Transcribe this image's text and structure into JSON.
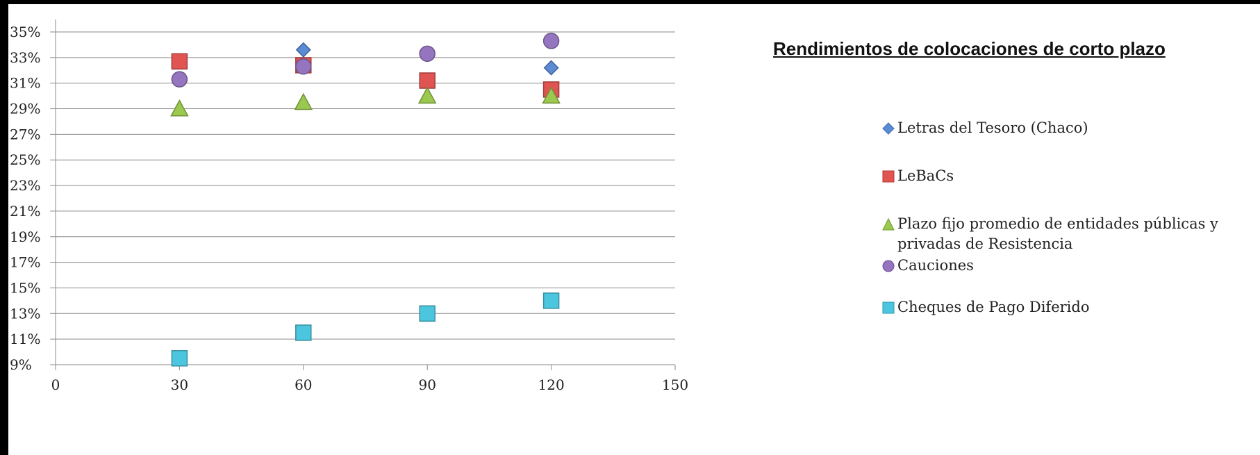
{
  "chart_data": {
    "type": "scatter",
    "title": "Rendimientos de colocaciones de corto plazo",
    "xlabel": "",
    "ylabel": "",
    "xlim": [
      0,
      150
    ],
    "ylim": [
      0.09,
      0.36
    ],
    "x_ticks": [
      "0",
      "30",
      "60",
      "90",
      "120",
      "150"
    ],
    "y_ticks": [
      "9%",
      "11%",
      "13%",
      "15%",
      "17%",
      "19%",
      "21%",
      "23%",
      "25%",
      "27%",
      "29%",
      "31%",
      "33%",
      "35%"
    ],
    "grid": "horizontal",
    "legend_position": "right",
    "series": [
      {
        "name": "Letras del Tesoro (Chaco)",
        "marker": "diamond",
        "color": "#5b8bd4",
        "x": [
          60,
          120
        ],
        "y": [
          0.336,
          0.322
        ]
      },
      {
        "name": "LeBaCs",
        "marker": "square",
        "color": "#e05552",
        "x": [
          30,
          60,
          90,
          120
        ],
        "y": [
          0.327,
          0.324,
          0.312,
          0.305
        ]
      },
      {
        "name": "Plazo fijo promedio de entidades públicas y privadas de Resistencia",
        "marker": "triangle",
        "color": "#9bc84e",
        "x": [
          30,
          60,
          90,
          120
        ],
        "y": [
          0.29,
          0.295,
          0.3,
          0.3
        ]
      },
      {
        "name": "Cauciones",
        "marker": "circle",
        "color": "#9574c0",
        "x": [
          30,
          60,
          90,
          120
        ],
        "y": [
          0.313,
          0.323,
          0.333,
          0.343
        ]
      },
      {
        "name": "Cheques de Pago Diferido",
        "marker": "square",
        "color": "#4cc6df",
        "x": [
          30,
          60,
          90,
          120
        ],
        "y": [
          0.095,
          0.115,
          0.13,
          0.14
        ]
      }
    ]
  }
}
